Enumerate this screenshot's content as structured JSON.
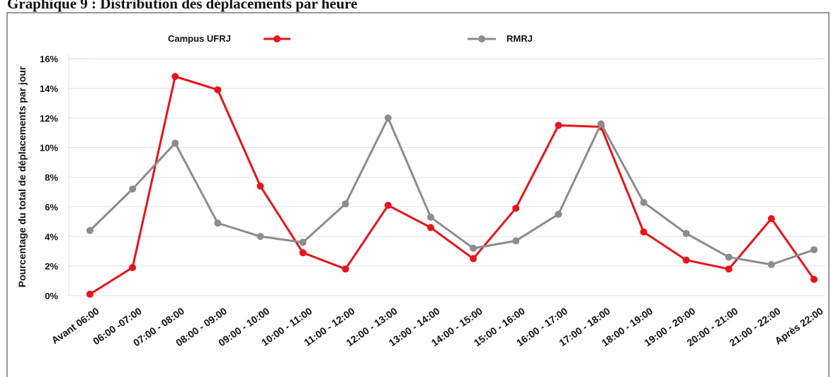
{
  "chart_data": {
    "type": "line",
    "title": "Graphique 9 : Distribution des déplacements par heure",
    "y_label": "Pourcentage du total de déplacements par jour",
    "categories": [
      "Avant  06:00",
      "06:00 -07:00",
      "07:00 - 08:00",
      "08:00 - 09:00",
      "09:00 - 10:00",
      "10:00 - 11:00",
      "11:00 - 12:00",
      "12:00 - 13:00",
      "13:00 - 14:00",
      "14:00 - 15:00",
      "15:00 - 16:00",
      "16:00 - 17:00",
      "17:00 - 18:00",
      "18:00 - 19:00",
      "19:00 - 20:00",
      "20:00 - 21:00",
      "21:00 - 22:00",
      "Après  22:00"
    ],
    "series": [
      {
        "name": "Campus UFRJ",
        "color": "#e8141a",
        "values": [
          0.1,
          1.9,
          14.8,
          13.9,
          7.4,
          2.9,
          1.8,
          6.1,
          4.6,
          2.5,
          5.9,
          11.5,
          11.4,
          4.3,
          2.4,
          1.8,
          5.2,
          1.1
        ]
      },
      {
        "name": "RMRJ",
        "color": "#8c8c8c",
        "values": [
          4.4,
          7.2,
          10.3,
          4.9,
          4.0,
          3.6,
          6.2,
          12.0,
          5.3,
          3.2,
          3.7,
          5.5,
          11.6,
          6.3,
          4.2,
          2.6,
          2.1,
          3.1
        ]
      }
    ],
    "ylim": [
      0,
      16
    ],
    "yticks": [
      {
        "value": 0,
        "label": "0%"
      },
      {
        "value": 2,
        "label": "2%"
      },
      {
        "value": 4,
        "label": "4%"
      },
      {
        "value": 6,
        "label": "6%"
      },
      {
        "value": 8,
        "label": "8%"
      },
      {
        "value": 10,
        "label": "10%"
      },
      {
        "value": 12,
        "label": "12%"
      },
      {
        "value": 14,
        "label": "14%"
      },
      {
        "value": 16,
        "label": "16%"
      }
    ],
    "grid": true
  }
}
